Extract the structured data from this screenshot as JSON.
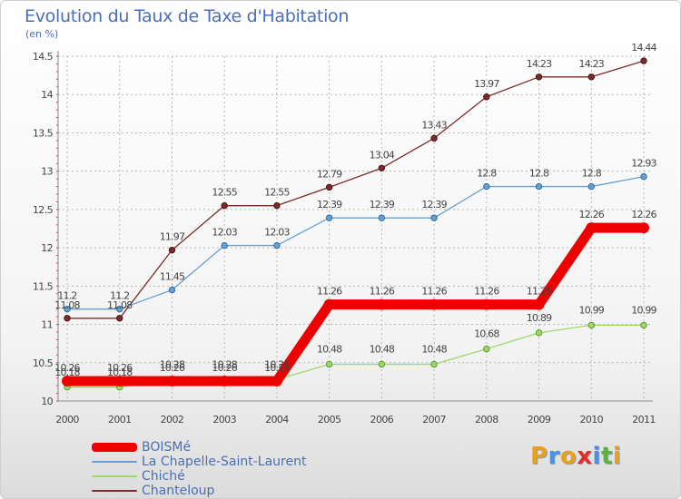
{
  "title": "Evolution du Taux de Taxe d'Habitation",
  "unit_label": "(en %)",
  "logo": {
    "text": "Proxiti",
    "colors": [
      "#e8a020",
      "#4f8fe0",
      "#e8a020",
      "#e0302a",
      "#4f8fe0",
      "#5cb040",
      "#e8a020"
    ]
  },
  "chart_data": {
    "type": "line",
    "title": "Evolution du Taux de Taxe d'Habitation",
    "ylabel": "(en %)",
    "xlabel": "",
    "x": [
      "2000",
      "2001",
      "2002",
      "2003",
      "2004",
      "2005",
      "2006",
      "2007",
      "2008",
      "2009",
      "2010",
      "2011"
    ],
    "ylim": [
      10,
      14.5
    ],
    "yticks": [
      "10",
      "10.5",
      "11",
      "11.5",
      "12",
      "12.5",
      "13",
      "13.5",
      "14",
      "14.5"
    ],
    "grid": true,
    "legend": "bottom-left",
    "series": [
      {
        "name": "BOISMé",
        "color": "#ee0000",
        "values": [
          10.26,
          10.26,
          10.26,
          10.26,
          10.26,
          11.26,
          11.26,
          11.26,
          11.26,
          11.26,
          12.26,
          12.26
        ],
        "labels": [
          "10.26",
          "10.26",
          "10.26",
          "10.26",
          "10.26",
          "11.26",
          "11.26",
          "11.26",
          "11.26",
          "11.26",
          "12.26",
          "12.26"
        ]
      },
      {
        "name": "La Chapelle-Saint-Laurent",
        "color": "#6aa0d0",
        "values": [
          11.2,
          11.2,
          11.45,
          12.03,
          12.03,
          12.39,
          12.39,
          12.39,
          12.8,
          12.8,
          12.8,
          12.93
        ],
        "labels": [
          "11.2",
          "11.2",
          "11.45",
          "12.03",
          "12.03",
          "12.39",
          "12.39",
          "12.39",
          "12.8",
          "12.8",
          "12.8",
          "12.93"
        ]
      },
      {
        "name": "Chiché",
        "color": "#9ed86a",
        "values": [
          10.18,
          10.18,
          10.28,
          10.28,
          10.28,
          10.48,
          10.48,
          10.48,
          10.68,
          10.89,
          10.99,
          10.99
        ],
        "labels": [
          "10.18",
          "10.18",
          "10.28",
          "10.28",
          "10.28",
          "10.48",
          "10.48",
          "10.48",
          "10.68",
          "10.89",
          "10.99",
          "10.99"
        ]
      },
      {
        "name": "Chanteloup",
        "color": "#7a2c2c",
        "values": [
          11.08,
          11.08,
          11.97,
          12.55,
          12.55,
          12.79,
          13.04,
          13.43,
          13.97,
          14.23,
          14.23,
          14.44
        ],
        "labels": [
          "11.08",
          "11.08",
          "11.97",
          "12.55",
          "12.55",
          "12.79",
          "13.04",
          "13.43",
          "13.97",
          "14.23",
          "14.23",
          "14.44"
        ]
      }
    ]
  }
}
